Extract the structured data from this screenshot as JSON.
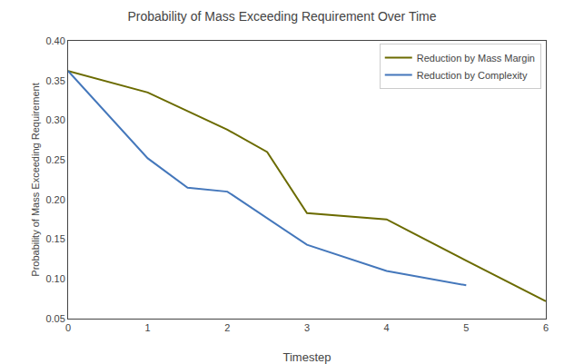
{
  "chart_data": {
    "type": "line",
    "title": "Probability of Mass Exceeding Requirement Over Time",
    "xlabel": "Timestep",
    "ylabel": "Probability of Mass Exceeding Requirement",
    "xlim": [
      0,
      6
    ],
    "ylim": [
      0.05,
      0.4
    ],
    "xticks": [
      0,
      1,
      2,
      3,
      4,
      5,
      6
    ],
    "yticks": [
      0.05,
      {
        "value": 0.1,
        "label": "0.10"
      },
      0.15,
      {
        "value": 0.2,
        "label": "0.20"
      },
      0.25,
      {
        "value": 0.3,
        "label": "0.30"
      },
      0.35,
      {
        "value": 0.4,
        "label": "0.40"
      }
    ],
    "series": [
      {
        "name": "Reduction by Mass Margin",
        "color": "#6b6b00",
        "x": [
          0,
          1.0,
          2.0,
          2.5,
          3.0,
          4.0,
          5.0,
          6.0
        ],
        "values": [
          0.362,
          0.335,
          0.288,
          0.26,
          0.183,
          0.175,
          0.123,
          0.072
        ]
      },
      {
        "name": "Reduction by Complexity",
        "color": "#4477bb",
        "x": [
          0,
          1.0,
          1.5,
          2.0,
          3.0,
          4.0,
          5.0
        ],
        "values": [
          0.362,
          0.252,
          0.215,
          0.21,
          0.143,
          0.11,
          0.092
        ]
      }
    ],
    "grid": false,
    "legend": "upper right"
  }
}
